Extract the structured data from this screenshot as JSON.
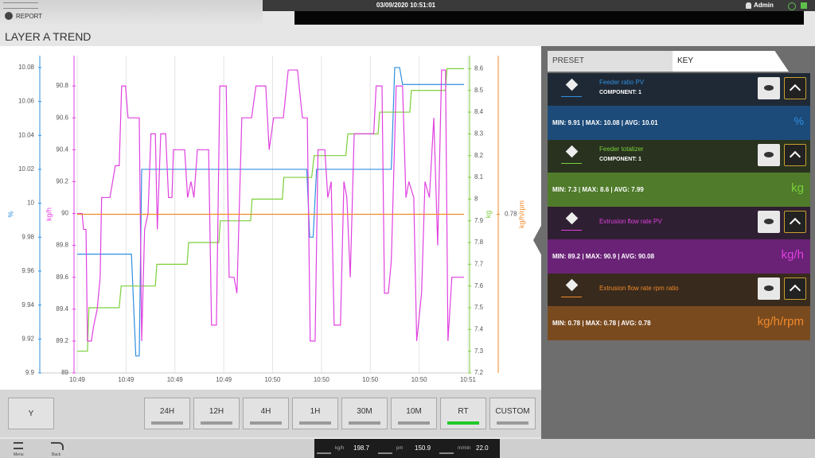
{
  "header": {
    "app": "REPORT",
    "datetime": "03/09/2020 10:51:01",
    "user": "Admin"
  },
  "page_title": "LAYER A TREND",
  "chart_data": {
    "type": "line",
    "xlim": [
      0,
      8
    ],
    "xticks": [
      {
        "value": 0,
        "label": "10:49"
      },
      {
        "value": 1,
        "label": "10:49"
      },
      {
        "value": 2,
        "label": "10:49"
      },
      {
        "value": 3,
        "label": "10:49"
      },
      {
        "value": 4,
        "label": "10:50"
      },
      {
        "value": 5,
        "label": "10:50"
      },
      {
        "value": 6,
        "label": "10:50"
      },
      {
        "value": 7,
        "label": "10:50"
      },
      {
        "value": 8,
        "label": "10:51"
      }
    ],
    "grid": true,
    "axes": [
      {
        "label": "%",
        "lim": [
          9.9,
          10.087
        ],
        "ticks": [
          9.9,
          9.92,
          9.94,
          9.96,
          9.98,
          10,
          10.02,
          10.04,
          10.06,
          10.08
        ]
      },
      {
        "label": "kg/h",
        "lim": [
          89,
          90.99
        ],
        "ticks": [
          89,
          89.2,
          89.4,
          89.6,
          89.8,
          90,
          90.2,
          90.4,
          90.6,
          90.8
        ]
      },
      {
        "label": "kg",
        "lim": [
          7.2,
          8.66
        ],
        "ticks": [
          7.2,
          7.3,
          7.4,
          7.5,
          7.6,
          7.7,
          7.8,
          7.9,
          8,
          8.1,
          8.2,
          8.3,
          8.4,
          8.5,
          8.6
        ]
      },
      {
        "label": "kg/h/rpm",
        "lim": [
          0.77,
          0.79
        ],
        "ticks": [
          0.78
        ]
      }
    ],
    "series": [
      {
        "name": "Feeder ratio PV",
        "color": "#2f8fe0",
        "axis": 0,
        "x": [
          0,
          1.11,
          1.2,
          1.27,
          1.32,
          4.7,
          4.76,
          4.83,
          4.9,
          6.43,
          6.5,
          6.6,
          6.66,
          7.92
        ],
        "values": [
          9.97,
          9.97,
          9.91,
          9.91,
          10.02,
          10.02,
          9.98,
          9.98,
          10.02,
          10.02,
          10.08,
          10.08,
          10.07,
          10.07
        ]
      },
      {
        "name": "Feeder totalizer",
        "color": "#7ccf3a",
        "axis": 2,
        "x": [
          0,
          0.21,
          0.24,
          0.86,
          0.9,
          1.6,
          1.63,
          2.25,
          2.28,
          2.9,
          2.93,
          3.55,
          3.58,
          4.2,
          4.23,
          4.8,
          4.85,
          5.5,
          5.54,
          6.16,
          6.19,
          6.81,
          6.84,
          7.54,
          7.57,
          7.92
        ],
        "values": [
          7.3,
          7.3,
          7.5,
          7.5,
          7.6,
          7.6,
          7.7,
          7.7,
          7.8,
          7.8,
          7.9,
          7.9,
          8,
          8,
          8.1,
          8.1,
          8.2,
          8.2,
          8.3,
          8.3,
          8.4,
          8.4,
          8.5,
          8.5,
          8.6,
          8.6
        ]
      },
      {
        "name": "Extrusion flow rate PV",
        "color": "#e040e0",
        "axis": 1,
        "x": [
          0,
          0.1,
          0.13,
          0.18,
          0.21,
          0.29,
          0.34,
          0.41,
          0.47,
          0.5,
          0.67,
          0.78,
          0.86,
          0.91,
          0.99,
          1.04,
          1.27,
          1.32,
          1.38,
          1.45,
          1.51,
          1.6,
          1.64,
          1.71,
          1.81,
          1.87,
          1.94,
          1.97,
          2.2,
          2.26,
          2.33,
          2.39,
          2.46,
          2.69,
          2.75,
          2.85,
          2.92,
          3.05,
          3.11,
          3.21,
          3.27,
          3.37,
          3.57,
          3.66,
          3.86,
          3.93,
          4.02,
          4.22,
          4.32,
          4.51,
          4.61,
          4.71,
          4.77,
          4.87,
          4.93,
          5.07,
          5.13,
          5.2,
          5.26,
          5.39,
          5.46,
          5.52,
          5.59,
          5.67,
          6.07,
          6.12,
          6.24,
          6.29,
          6.37,
          6.43,
          6.53,
          6.66,
          6.73,
          6.79,
          6.89,
          6.95,
          7.05,
          7.12,
          7.21,
          7.3,
          7.38,
          7.46,
          7.54,
          7.59,
          7.67,
          7.92
        ],
        "values": [
          90,
          90,
          89.9,
          89.9,
          89.2,
          89.2,
          89.3,
          89.4,
          89.6,
          90.1,
          90.1,
          90.3,
          90.3,
          90.8,
          90.8,
          90.6,
          90.6,
          89.2,
          89.9,
          90,
          90.5,
          90.5,
          89.9,
          90.5,
          90.5,
          90.1,
          90.1,
          90.4,
          90.4,
          90.1,
          90.2,
          90.1,
          90.4,
          90.4,
          89.3,
          89.3,
          90.8,
          90.8,
          89.6,
          89.6,
          89.5,
          90.6,
          90.6,
          90.8,
          90.8,
          90.4,
          90.6,
          90.6,
          90.9,
          90.9,
          90.6,
          90.6,
          89.2,
          89.2,
          90.4,
          90.4,
          90.1,
          90.2,
          89.3,
          89.3,
          90.2,
          90.1,
          89.6,
          90.5,
          90.5,
          90.8,
          90.8,
          89.5,
          89.5,
          89.7,
          90.8,
          90.8,
          90.1,
          90.2,
          90.1,
          89.2,
          89.5,
          90.2,
          90.1,
          90.6,
          89.8,
          90.9,
          90.9,
          89.2,
          89.6,
          89.6
        ]
      },
      {
        "name": "Extrusion flow rate rpm ratio",
        "color": "#f08a2a",
        "axis": 3,
        "x": [
          0,
          7.92
        ],
        "values": [
          0.78,
          0.78
        ]
      }
    ]
  },
  "tabs": [
    "PRESET",
    "KEY"
  ],
  "key": [
    {
      "component": "COMPONENT: 1",
      "stats": "MIN: 9.91 | MAX: 10.08 | AVG: 10.01"
    },
    {
      "component": "COMPONENT: 1",
      "stats": "MIN: 7.3 | MAX: 8.6 | AVG: 7.99"
    },
    {
      "stats": "MIN: 89.2 | MAX: 90.9 | AVG: 90.08"
    },
    {
      "stats": "MIN: 0.78 | MAX: 0.78 | AVG: 0.78"
    }
  ],
  "buttons": {
    "axis": "Y",
    "ranges": [
      "24H",
      "12H",
      "4H",
      "1H",
      "30M",
      "10M",
      "RT",
      "CUSTOM"
    ]
  },
  "footer": {
    "menu": "Menu",
    "back": "Back",
    "status": [
      {
        "unit": "kg/h",
        "value": "198.7"
      },
      {
        "unit": "pm",
        "value": "150.9"
      },
      {
        "unit": "m/min",
        "value": "22.0"
      }
    ]
  }
}
